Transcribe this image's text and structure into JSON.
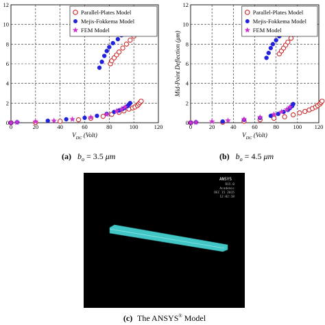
{
  "chart_data": [
    {
      "type": "scatter",
      "xlabel": "V_DC (Volt)",
      "ylabel": "",
      "xlim": [
        0,
        120
      ],
      "ylim": [
        0,
        12
      ],
      "xticks": [
        "0",
        "20",
        "40",
        "60",
        "80",
        "100",
        "120"
      ],
      "yticks": [
        "0",
        "2",
        "4",
        "6",
        "8",
        "10",
        "12"
      ],
      "grid": "dashed",
      "legend_position": "top-right",
      "series": [
        {
          "name": "Parallel-Plates Model",
          "marker": "open-circle",
          "color": "#cc2a2a",
          "lower": [
            [
              0,
              0
            ],
            [
              20,
              0.02
            ],
            [
              40,
              0.15
            ],
            [
              55,
              0.3
            ],
            [
              65,
              0.45
            ],
            [
              75,
              0.65
            ],
            [
              82,
              0.85
            ],
            [
              88,
              1.05
            ],
            [
              92,
              1.2
            ],
            [
              96,
              1.38
            ],
            [
              99,
              1.5
            ],
            [
              101,
              1.6
            ],
            [
              103,
              1.75
            ],
            [
              104,
              1.9
            ],
            [
              105,
              2.05
            ],
            [
              106,
              2.2
            ]
          ],
          "upper": [
            [
              81,
              6.0
            ],
            [
              82,
              6.3
            ],
            [
              84,
              6.6
            ],
            [
              86,
              6.9
            ],
            [
              88,
              7.2
            ],
            [
              91,
              7.6
            ],
            [
              94,
              8.0
            ],
            [
              97,
              8.4
            ],
            [
              100,
              8.8
            ],
            [
              102,
              9.2
            ],
            [
              104,
              9.6
            ],
            [
              105,
              10.0
            ]
          ]
        },
        {
          "name": "Mejis-Fokkema Model",
          "marker": "filled-circle",
          "color": "#2222dd",
          "lower": [
            [
              0,
              0
            ],
            [
              5,
              0.05
            ],
            [
              30,
              0.2
            ],
            [
              45,
              0.35
            ],
            [
              60,
              0.5
            ],
            [
              70,
              0.7
            ],
            [
              78,
              0.9
            ],
            [
              84,
              1.1
            ],
            [
              88,
              1.25
            ],
            [
              91,
              1.4
            ],
            [
              93,
              1.55
            ],
            [
              95,
              1.7
            ],
            [
              96,
              1.85
            ],
            [
              97,
              2.0
            ]
          ],
          "upper": [
            [
              72,
              5.6
            ],
            [
              74,
              6.2
            ],
            [
              76,
              6.8
            ],
            [
              78,
              7.3
            ],
            [
              80,
              7.7
            ],
            [
              83,
              8.1
            ],
            [
              87,
              8.5
            ],
            [
              90,
              8.9
            ],
            [
              93,
              9.3
            ],
            [
              95,
              9.7
            ],
            [
              96,
              10.0
            ],
            [
              97,
              10.3
            ]
          ]
        },
        {
          "name": "FEM Model",
          "marker": "star",
          "color": "#cc33cc",
          "lower": [
            [
              0,
              0
            ],
            [
              5,
              0.05
            ],
            [
              20,
              0.12
            ],
            [
              35,
              0.2
            ],
            [
              50,
              0.35
            ],
            [
              65,
              0.55
            ],
            [
              78,
              0.85
            ],
            [
              86,
              1.2
            ],
            [
              90,
              1.4
            ],
            [
              93,
              1.6
            ]
          ],
          "upper": [
            [
              92,
              9.0
            ],
            [
              95,
              9.5
            ],
            [
              96,
              9.9
            ]
          ]
        }
      ]
    },
    {
      "type": "scatter",
      "xlabel": "V_DC (Volt)",
      "ylabel": "Mid-Point Deflection (μm)",
      "xlim": [
        0,
        120
      ],
      "ylim": [
        0,
        12
      ],
      "xticks": [
        "0",
        "20",
        "40",
        "60",
        "80",
        "100",
        "120"
      ],
      "yticks": [
        "0",
        "2",
        "4",
        "6",
        "8",
        "10",
        "12"
      ],
      "grid": "dashed",
      "legend_position": "top-right",
      "series": [
        {
          "name": "Parallel-Plates Model",
          "marker": "open-circle",
          "color": "#cc2a2a",
          "lower": [
            [
              0,
              0
            ],
            [
              30,
              0.05
            ],
            [
              50,
              0.15
            ],
            [
              65,
              0.3
            ],
            [
              78,
              0.45
            ],
            [
              88,
              0.6
            ],
            [
              96,
              0.8
            ],
            [
              102,
              1.0
            ],
            [
              107,
              1.15
            ],
            [
              111,
              1.3
            ],
            [
              114,
              1.45
            ],
            [
              117,
              1.6
            ],
            [
              119,
              1.75
            ],
            [
              121,
              1.9
            ],
            [
              122,
              2.05
            ],
            [
              123,
              2.2
            ]
          ],
          "upper": [
            [
              83,
              7.0
            ],
            [
              85,
              7.3
            ],
            [
              87,
              7.6
            ],
            [
              89,
              7.9
            ],
            [
              91,
              8.2
            ],
            [
              94,
              8.6
            ],
            [
              97,
              9.0
            ],
            [
              99,
              9.4
            ],
            [
              101,
              9.7
            ],
            [
              102,
              10.0
            ],
            [
              103,
              10.3
            ]
          ]
        },
        {
          "name": "Mejis-Fokkema Model",
          "marker": "filled-circle",
          "color": "#2222dd",
          "lower": [
            [
              0,
              0
            ],
            [
              5,
              0.05
            ],
            [
              30,
              0.12
            ],
            [
              50,
              0.3
            ],
            [
              65,
              0.5
            ],
            [
              75,
              0.7
            ],
            [
              82,
              0.9
            ],
            [
              87,
              1.1
            ],
            [
              91,
              1.3
            ],
            [
              93,
              1.5
            ],
            [
              95,
              1.7
            ],
            [
              96,
              1.9
            ]
          ],
          "upper": [
            [
              71,
              6.6
            ],
            [
              73,
              7.1
            ],
            [
              75,
              7.6
            ],
            [
              77,
              8.0
            ],
            [
              80,
              8.4
            ],
            [
              83,
              8.8
            ],
            [
              86,
              9.2
            ],
            [
              89,
              9.6
            ],
            [
              91,
              10.0
            ],
            [
              93,
              10.3
            ]
          ]
        },
        {
          "name": "FEM Model",
          "marker": "star",
          "color": "#cc33cc",
          "lower": [
            [
              0,
              0
            ],
            [
              5,
              0.05
            ],
            [
              20,
              0.12
            ],
            [
              35,
              0.22
            ],
            [
              50,
              0.35
            ],
            [
              65,
              0.55
            ],
            [
              78,
              0.85
            ],
            [
              85,
              1.1
            ],
            [
              90,
              1.35
            ],
            [
              93,
              1.6
            ]
          ],
          "upper": [
            [
              90,
              9.2
            ],
            [
              92,
              9.8
            ]
          ]
        }
      ]
    }
  ],
  "captions": {
    "a": "(a)  b_o = 3.5 μm",
    "b": "(b)  b_o = 4.5 μm",
    "c": "(c) The ANSYS® Model"
  },
  "ansys": {
    "logo": "ANSYS",
    "version": "R15.0",
    "label": "Academic",
    "date": "DEC 15 2015",
    "time": "12:02:18"
  },
  "colors": {
    "parallel": "#cc2a2a",
    "mejis": "#2222dd",
    "fem": "#cc33cc",
    "beam": "#43c6c6",
    "ansys_bg": "#000000"
  }
}
